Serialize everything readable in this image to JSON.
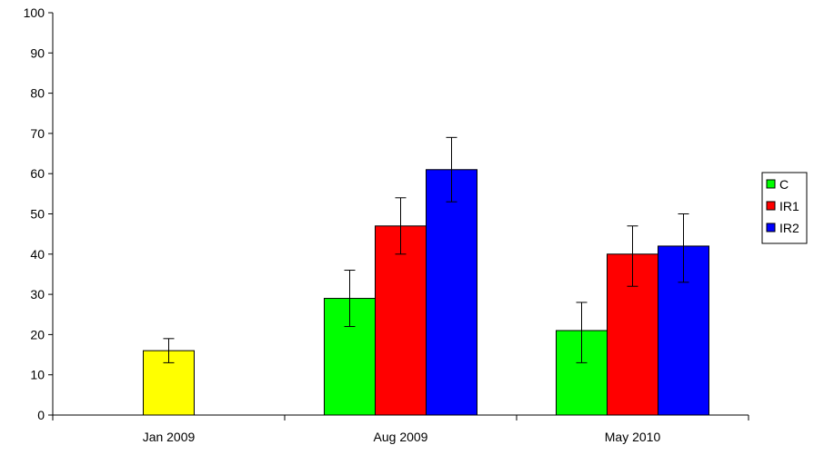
{
  "chart_data": {
    "type": "bar",
    "categories": [
      "Jan 2009",
      "Aug 2009",
      "May 2010"
    ],
    "series": [
      {
        "name": "",
        "color": "#ffff00",
        "values": [
          16,
          null,
          null
        ],
        "err_low": [
          13,
          null,
          null
        ],
        "err_high": [
          19,
          null,
          null
        ]
      },
      {
        "name": "C",
        "color": "#00ff00",
        "values": [
          null,
          29,
          21
        ],
        "err_low": [
          null,
          22,
          13
        ],
        "err_high": [
          null,
          36,
          28
        ]
      },
      {
        "name": "IR1",
        "color": "#ff0000",
        "values": [
          null,
          47,
          40
        ],
        "err_low": [
          null,
          40,
          32
        ],
        "err_high": [
          null,
          54,
          47
        ]
      },
      {
        "name": "IR2",
        "color": "#0000ff",
        "values": [
          null,
          61,
          42
        ],
        "err_low": [
          null,
          53,
          33
        ],
        "err_high": [
          null,
          69,
          50
        ]
      }
    ],
    "yticks": [
      "0",
      "10",
      "20",
      "30",
      "40",
      "50",
      "60",
      "70",
      "80",
      "90",
      "100"
    ],
    "ylim": [
      0,
      100
    ],
    "grid": false,
    "legend_position": "right",
    "title": "",
    "xlabel": "",
    "ylabel": ""
  }
}
